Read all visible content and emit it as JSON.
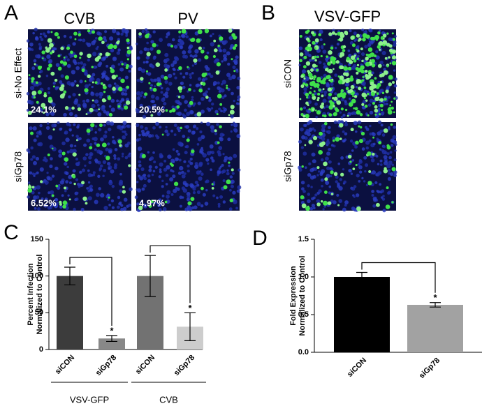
{
  "image_panels": [
    {
      "panel": "A",
      "columns": [
        "CVB",
        "PV"
      ],
      "rows": [
        "si-No Effect",
        "siGp78"
      ],
      "percentages": [
        [
          "24.1%",
          "20.5%"
        ],
        [
          "6.52%",
          "4.97%"
        ]
      ]
    },
    {
      "panel": "B",
      "columns": [
        "VSV-GFP"
      ],
      "rows": [
        "siCON",
        "siGp78"
      ]
    }
  ],
  "chart_data": [
    {
      "type": "bar",
      "panel": "C",
      "ylabel": [
        "Percent Infection",
        "Normalized to Control"
      ],
      "categories": [
        "siCON",
        "siGp78",
        "siCON",
        "siGp78"
      ],
      "values": [
        100,
        15,
        100,
        31
      ],
      "errors": [
        12,
        4,
        28,
        19
      ],
      "colors": [
        "#3c3c3c",
        "#888888",
        "#727272",
        "#cdcdcd"
      ],
      "significance": [
        null,
        "*",
        null,
        "*"
      ],
      "groups": [
        "VSV-GFP",
        "CVB"
      ],
      "ylim": [
        0,
        150
      ],
      "yticks": [
        0,
        50,
        100,
        150
      ]
    },
    {
      "type": "bar",
      "panel": "D",
      "ylabel": [
        "Fold Expression",
        "Normalized to Control"
      ],
      "categories": [
        "siCON",
        "siGp78"
      ],
      "values": [
        1.0,
        0.63
      ],
      "errors": [
        0.06,
        0.03
      ],
      "colors": [
        "#000000",
        "#a2a2a2"
      ],
      "significance": [
        null,
        "*"
      ],
      "ylim": [
        0,
        1.5
      ],
      "yticks": [
        {
          "value": 0,
          "label": "0.0"
        },
        {
          "value": 0.5,
          "label": "0.5"
        },
        {
          "value": 1.0,
          "label": "1.0"
        },
        {
          "value": 1.5,
          "label": "1.5"
        }
      ]
    }
  ]
}
